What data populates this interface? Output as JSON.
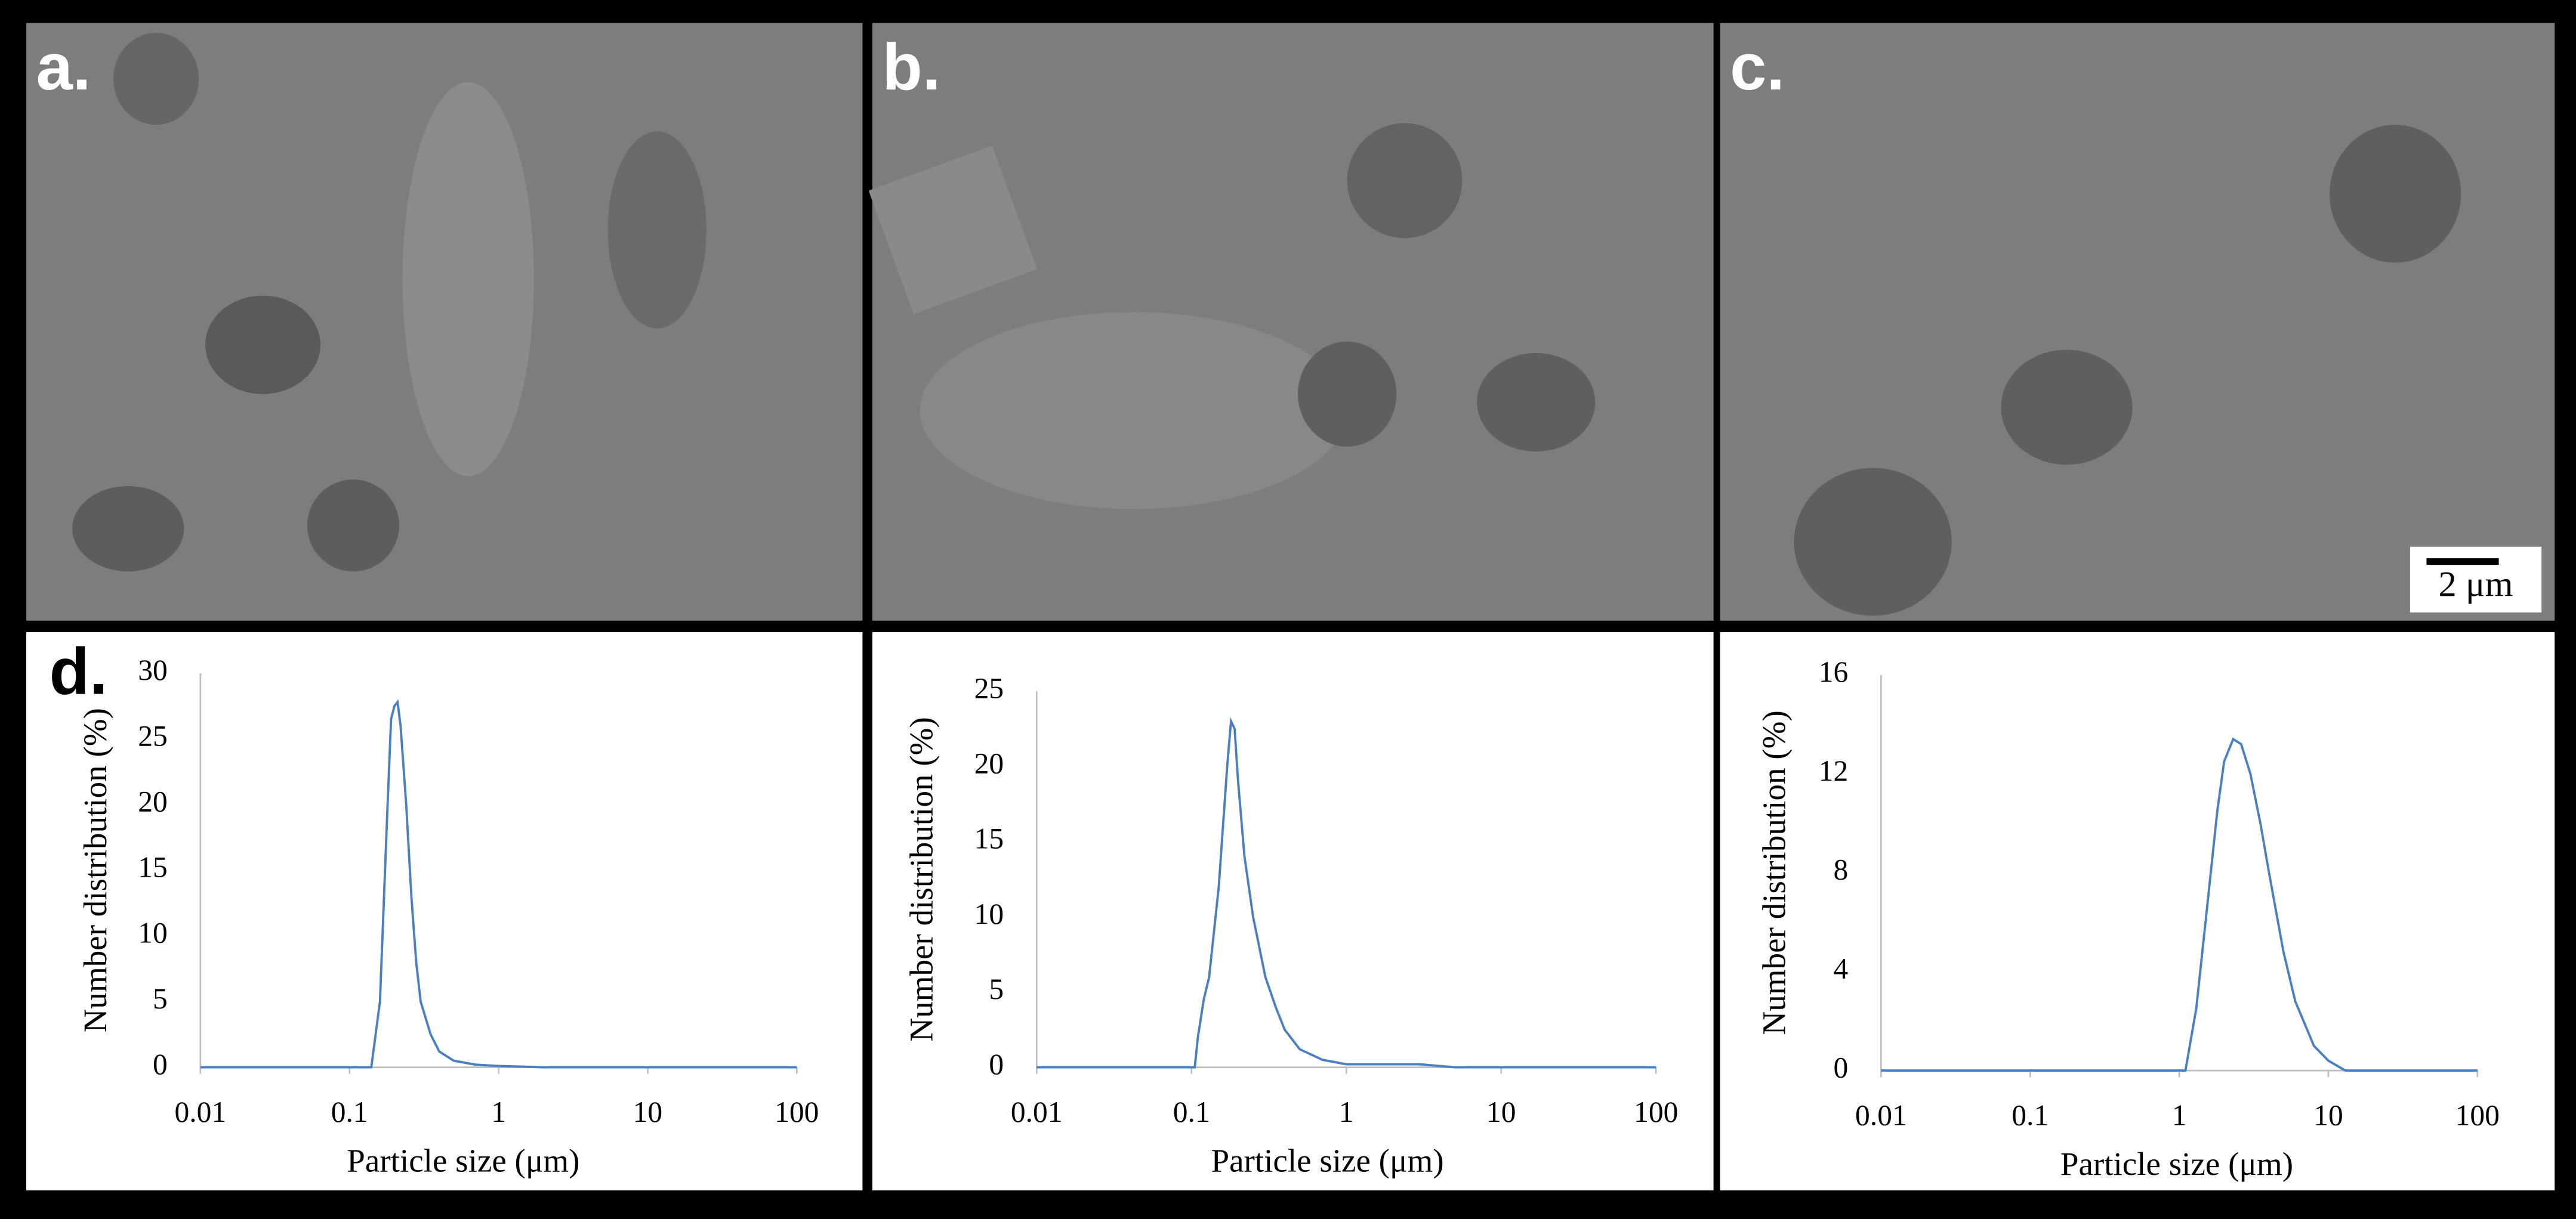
{
  "panels": {
    "labels": [
      "a.",
      "b.",
      "c.",
      "d."
    ],
    "scale_bar": "2 μm"
  },
  "chart_data": [
    {
      "type": "line",
      "xlabel": "Particle size (μm)",
      "ylabel": "Number distribution (%)",
      "xscale": "log",
      "xlim": [
        0.01,
        100
      ],
      "xticks": [
        0.01,
        0.1,
        1,
        10,
        100
      ],
      "ylim": [
        0,
        30
      ],
      "yticks": [
        0,
        5,
        10,
        15,
        20,
        25,
        30
      ],
      "grid": false,
      "x": [
        0.01,
        0.14,
        0.16,
        0.18,
        0.19,
        0.2,
        0.21,
        0.22,
        0.24,
        0.26,
        0.28,
        0.3,
        0.35,
        0.4,
        0.5,
        0.7,
        1,
        2,
        100
      ],
      "series": [
        {
          "color": "#4a7fc1",
          "values": [
            0,
            0,
            5,
            20,
            26.5,
            27.5,
            27.8,
            26,
            20,
            13,
            8,
            5,
            2.5,
            1.2,
            0.5,
            0.2,
            0.1,
            0,
            0
          ]
        }
      ]
    },
    {
      "type": "line",
      "xlabel": "Particle size (μm)",
      "ylabel": "Number distribution (%)",
      "xscale": "log",
      "xlim": [
        0.01,
        100
      ],
      "xticks": [
        0.01,
        0.1,
        1,
        10,
        100
      ],
      "ylim": [
        0,
        25
      ],
      "yticks": [
        0,
        5,
        10,
        15,
        20,
        25
      ],
      "grid": false,
      "x": [
        0.01,
        0.105,
        0.11,
        0.12,
        0.13,
        0.15,
        0.17,
        0.18,
        0.19,
        0.2,
        0.22,
        0.25,
        0.3,
        0.35,
        0.4,
        0.5,
        0.7,
        1,
        2,
        3,
        5,
        100
      ],
      "series": [
        {
          "color": "#4a7fc1",
          "values": [
            0,
            0,
            2,
            4.5,
            6,
            12,
            20,
            23,
            22.5,
            19,
            14,
            10,
            6,
            4,
            2.5,
            1.2,
            0.5,
            0.2,
            0.2,
            0.2,
            0,
            0
          ]
        }
      ]
    },
    {
      "type": "line",
      "xlabel": "Particle size (μm)",
      "ylabel": "Number distribution (%)",
      "xscale": "log",
      "xlim": [
        0.01,
        100
      ],
      "xticks": [
        0.01,
        0.1,
        1,
        10,
        100
      ],
      "ylim": [
        0,
        16
      ],
      "yticks": [
        0,
        4,
        8,
        12,
        16
      ],
      "grid": false,
      "x": [
        0.01,
        1.1,
        1.3,
        1.5,
        1.8,
        2,
        2.3,
        2.6,
        3,
        3.5,
        4,
        5,
        6,
        8,
        10,
        13,
        100
      ],
      "series": [
        {
          "color": "#4a7fc1",
          "values": [
            0,
            0,
            2.5,
            6,
            10.5,
            12.5,
            13.4,
            13.2,
            12,
            10,
            8,
            4.8,
            2.8,
            1,
            0.4,
            0,
            0
          ]
        }
      ]
    }
  ]
}
